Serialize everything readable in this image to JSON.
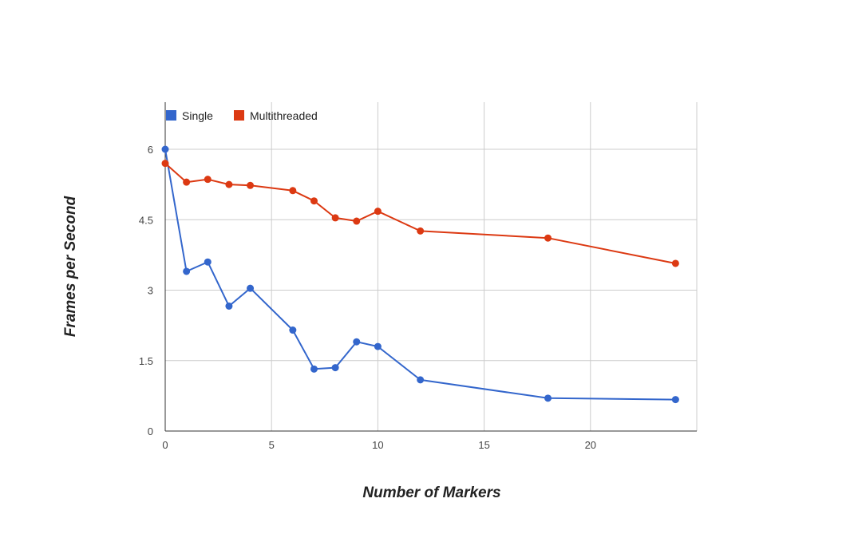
{
  "chart_data": {
    "type": "line",
    "xlabel": "Number of Markers",
    "ylabel": "Frames per Second",
    "xlim": [
      0,
      25
    ],
    "ylim": [
      0,
      6
    ],
    "x_ticks": [
      0,
      5,
      10,
      15,
      20
    ],
    "x_tick_labels": [
      "0",
      "5",
      "10",
      "15",
      "20"
    ],
    "y_ticks": [
      0,
      1.5,
      3,
      4.5,
      6
    ],
    "y_tick_labels": [
      "0",
      "1.5",
      "3",
      "4.5",
      "6"
    ],
    "grid": true,
    "legend_position": "top-left",
    "series": [
      {
        "name": "Single",
        "color": "#3366cc",
        "x": [
          0,
          1,
          2,
          3,
          4,
          6,
          7,
          8,
          9,
          10,
          12,
          18,
          24
        ],
        "y": [
          6.0,
          3.4,
          3.6,
          2.66,
          3.04,
          2.15,
          1.32,
          1.35,
          1.9,
          1.8,
          1.09,
          0.7,
          0.67
        ]
      },
      {
        "name": "Multithreaded",
        "color": "#dc3912",
        "x": [
          0,
          1,
          2,
          3,
          4,
          6,
          7,
          8,
          9,
          10,
          12,
          18,
          24
        ],
        "y": [
          5.7,
          5.3,
          5.36,
          5.25,
          5.23,
          5.12,
          4.9,
          4.54,
          4.47,
          4.68,
          4.26,
          4.11,
          3.57
        ]
      }
    ]
  }
}
